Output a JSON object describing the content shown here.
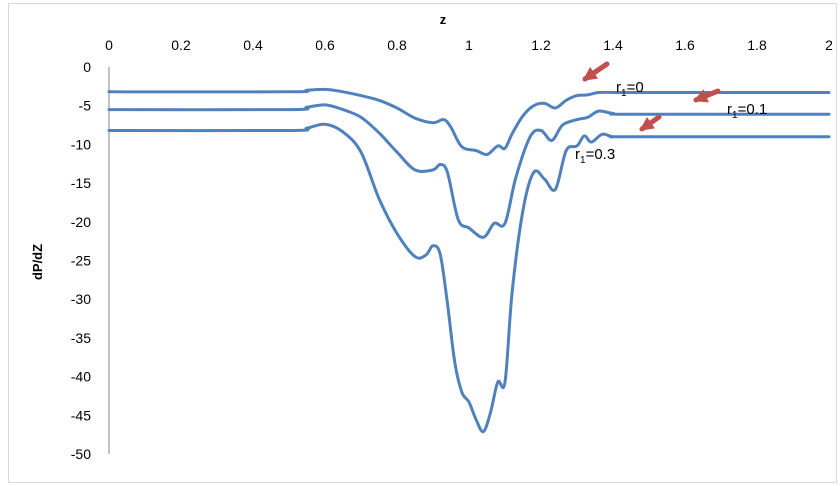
{
  "chart_data": {
    "type": "line",
    "title": "",
    "xlabel": "z",
    "ylabel": "dP/dZ",
    "xlim": [
      0,
      2
    ],
    "ylim": [
      -50,
      0
    ],
    "x_ticks": [
      "0",
      "0.2",
      "0.4",
      "0.6",
      "0.8",
      "1",
      "1.2",
      "1.4",
      "1.6",
      "1.8",
      "2"
    ],
    "y_ticks": [
      "0",
      "-5",
      "-10",
      "-15",
      "-20",
      "-25",
      "-30",
      "-35",
      "-40",
      "-45",
      "-50"
    ],
    "x_axis_position": "top",
    "grid": false,
    "line_color": "#4f81bd",
    "annotation_arrow_color": "#c0504d",
    "series": [
      {
        "label": "r1=0",
        "points": [
          [
            0,
            -3.2
          ],
          [
            0.5,
            -3.2
          ],
          [
            0.55,
            -3.0
          ],
          [
            0.6,
            -2.9
          ],
          [
            0.65,
            -3.2
          ],
          [
            0.7,
            -3.7
          ],
          [
            0.75,
            -4.3
          ],
          [
            0.8,
            -5.3
          ],
          [
            0.85,
            -6.6
          ],
          [
            0.9,
            -7.2
          ],
          [
            0.93,
            -6.8
          ],
          [
            0.95,
            -7.8
          ],
          [
            0.98,
            -10.3
          ],
          [
            1.02,
            -10.8
          ],
          [
            1.05,
            -11.3
          ],
          [
            1.08,
            -10.2
          ],
          [
            1.1,
            -10.5
          ],
          [
            1.12,
            -8.6
          ],
          [
            1.15,
            -6.3
          ],
          [
            1.18,
            -5.0
          ],
          [
            1.21,
            -4.7
          ],
          [
            1.24,
            -5.3
          ],
          [
            1.27,
            -4.3
          ],
          [
            1.3,
            -3.7
          ],
          [
            1.33,
            -3.6
          ],
          [
            1.36,
            -3.3
          ],
          [
            1.4,
            -3.3
          ],
          [
            1.45,
            -3.3
          ],
          [
            2.0,
            -3.3
          ]
        ]
      },
      {
        "label": "r1=0.1",
        "points": [
          [
            0,
            -5.5
          ],
          [
            0.5,
            -5.5
          ],
          [
            0.55,
            -5.2
          ],
          [
            0.6,
            -4.9
          ],
          [
            0.65,
            -5.5
          ],
          [
            0.7,
            -6.5
          ],
          [
            0.75,
            -8.5
          ],
          [
            0.8,
            -11.0
          ],
          [
            0.85,
            -13.3
          ],
          [
            0.9,
            -13.3
          ],
          [
            0.92,
            -12.6
          ],
          [
            0.94,
            -13.6
          ],
          [
            0.97,
            -19.7
          ],
          [
            1.0,
            -20.8
          ],
          [
            1.04,
            -22.0
          ],
          [
            1.07,
            -20.2
          ],
          [
            1.1,
            -20.2
          ],
          [
            1.13,
            -14.3
          ],
          [
            1.17,
            -9.0
          ],
          [
            1.2,
            -8.2
          ],
          [
            1.23,
            -9.5
          ],
          [
            1.26,
            -7.5
          ],
          [
            1.3,
            -6.8
          ],
          [
            1.33,
            -6.5
          ],
          [
            1.36,
            -5.7
          ],
          [
            1.4,
            -6.0
          ],
          [
            1.45,
            -6.1
          ],
          [
            2.0,
            -6.1
          ]
        ]
      },
      {
        "label": "r1=0.3",
        "points": [
          [
            0,
            -8.2
          ],
          [
            0.5,
            -8.2
          ],
          [
            0.55,
            -7.9
          ],
          [
            0.6,
            -7.4
          ],
          [
            0.65,
            -8.4
          ],
          [
            0.7,
            -11.0
          ],
          [
            0.75,
            -17.0
          ],
          [
            0.8,
            -21.5
          ],
          [
            0.85,
            -24.5
          ],
          [
            0.88,
            -24.3
          ],
          [
            0.9,
            -23.1
          ],
          [
            0.92,
            -24.2
          ],
          [
            0.94,
            -30.5
          ],
          [
            0.96,
            -38.0
          ],
          [
            0.98,
            -42.0
          ],
          [
            1.0,
            -43.3
          ],
          [
            1.02,
            -45.6
          ],
          [
            1.04,
            -47.1
          ],
          [
            1.06,
            -44.6
          ],
          [
            1.08,
            -40.7
          ],
          [
            1.1,
            -40.7
          ],
          [
            1.12,
            -29.0
          ],
          [
            1.15,
            -18.5
          ],
          [
            1.18,
            -13.6
          ],
          [
            1.21,
            -14.5
          ],
          [
            1.24,
            -15.8
          ],
          [
            1.27,
            -10.8
          ],
          [
            1.3,
            -10.2
          ],
          [
            1.32,
            -8.9
          ],
          [
            1.34,
            -9.7
          ],
          [
            1.37,
            -8.7
          ],
          [
            1.4,
            -9.0
          ],
          [
            1.45,
            -9.0
          ],
          [
            2.0,
            -9.0
          ]
        ]
      }
    ],
    "annotations": [
      {
        "base": "r",
        "sub": "1",
        "rest": "=0"
      },
      {
        "base": "r",
        "sub": "1",
        "rest": "=0.1"
      },
      {
        "base": "r",
        "sub": "1",
        "rest": "=0.3"
      }
    ]
  }
}
